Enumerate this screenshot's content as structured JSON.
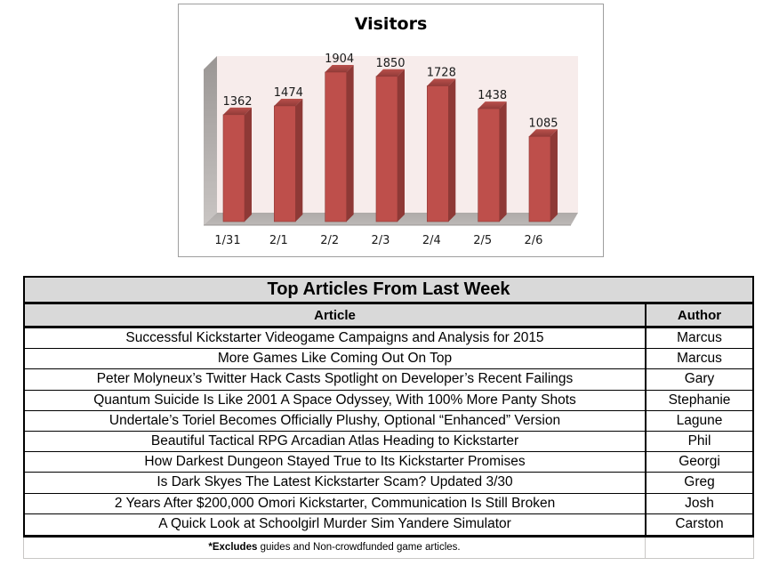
{
  "chart_data": {
    "type": "bar",
    "title": "Visitors",
    "categories": [
      "1/31",
      "2/1",
      "2/2",
      "2/3",
      "2/4",
      "2/5",
      "2/6"
    ],
    "values": [
      1362,
      1474,
      1904,
      1850,
      1728,
      1438,
      1085
    ],
    "xlabel": "",
    "ylabel": "",
    "ylim": [
      0,
      2000
    ],
    "grid": false,
    "legend": false,
    "data_labels": true,
    "style_3d": true,
    "colors": {
      "bar_front": "#be4f4b",
      "bar_side": "#8e3936",
      "bar_top": "#a8433f",
      "plot_bg": "#f7eceb",
      "label_text": "#1a1a1a"
    }
  },
  "table": {
    "title": "Top Articles From Last Week",
    "columns": [
      "Article",
      "Author"
    ],
    "rows": [
      {
        "article": "Successful Kickstarter Videogame Campaigns and Analysis for 2015",
        "author": "Marcus"
      },
      {
        "article": "More Games Like Coming Out On Top",
        "author": "Marcus"
      },
      {
        "article": "Peter Molyneux’s Twitter Hack Casts Spotlight on Developer’s Recent Failings",
        "author": "Gary"
      },
      {
        "article": "Quantum Suicide Is Like 2001 A Space Odyssey, With 100% More Panty Shots",
        "author": "Stephanie"
      },
      {
        "article": "Undertale’s Toriel Becomes Officially Plushy, Optional “Enhanced” Version",
        "author": "Lagune"
      },
      {
        "article": "Beautiful Tactical RPG Arcadian Atlas Heading to Kickstarter",
        "author": "Phil"
      },
      {
        "article": "How Darkest Dungeon Stayed True to Its Kickstarter Promises",
        "author": "Georgi"
      },
      {
        "article": "Is Dark Skyes The Latest Kickstarter Scam? Updated 3/30",
        "author": "Greg"
      },
      {
        "article": "2 Years After $200,000 Omori Kickstarter, Communication Is Still Broken",
        "author": "Josh"
      },
      {
        "article": "A Quick Look at Schoolgirl Murder Sim Yandere Simulator",
        "author": "Carston"
      }
    ],
    "footnote": {
      "bold": "*Excludes",
      "rest": " guides and Non-crowdfunded game articles."
    },
    "colors": {
      "header_bg": "#d9d9d9",
      "border": "#000000",
      "footer_border": "#c9c7c5"
    }
  }
}
